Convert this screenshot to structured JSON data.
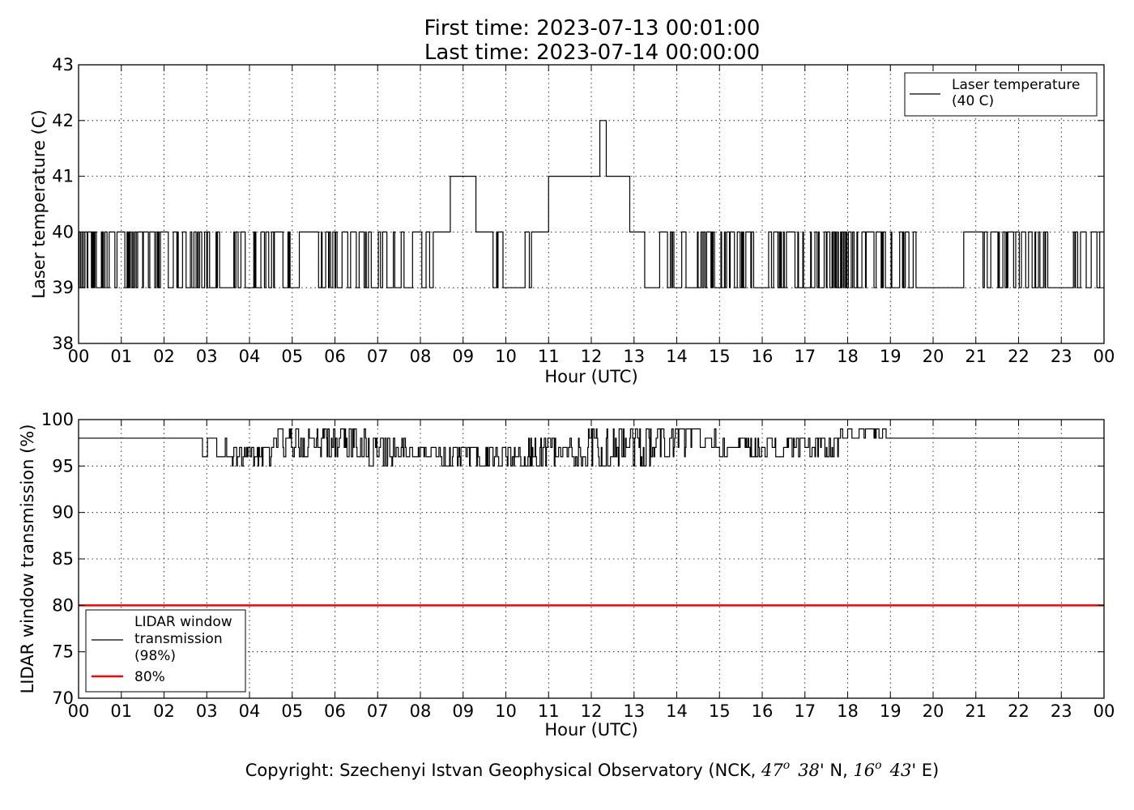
{
  "title": {
    "line1": "First time: 2023-07-13 00:01:00",
    "line2": "Last time: 2023-07-14 00:00:00"
  },
  "copyright": {
    "prefix": "Copyright: Szechenyi Istvan Geophysical Observatory (NCK, ",
    "lat_deg": "47",
    "lat_min": "38",
    "lat_suffix": "' N, ",
    "lon_deg": "16",
    "lon_min": "43",
    "lon_suffix": "' E)",
    "degree_mark": "o"
  },
  "colors": {
    "line": "#000000",
    "threshold": "#ff0000",
    "grid": "#000000"
  },
  "chart_data": [
    {
      "type": "line",
      "title": "",
      "xlabel": "Hour (UTC)",
      "ylabel": "Laser temperature (C)",
      "xlim": [
        0,
        24
      ],
      "ylim": [
        38,
        43
      ],
      "x_ticks": [
        0,
        1,
        2,
        3,
        4,
        5,
        6,
        7,
        8,
        9,
        10,
        11,
        12,
        13,
        14,
        15,
        16,
        17,
        18,
        19,
        20,
        21,
        22,
        23,
        24
      ],
      "x_tick_labels": [
        "00",
        "01",
        "02",
        "03",
        "04",
        "05",
        "06",
        "07",
        "08",
        "09",
        "10",
        "11",
        "12",
        "13",
        "14",
        "15",
        "16",
        "17",
        "18",
        "19",
        "20",
        "21",
        "22",
        "23",
        "00"
      ],
      "y_ticks": [
        38,
        39,
        40,
        41,
        42,
        43
      ],
      "y_tick_labels": [
        "38",
        "39",
        "40",
        "41",
        "42",
        "43"
      ],
      "grid": true,
      "legend_position": "top-right",
      "series": [
        {
          "name": "Laser temperature\n(40 C)",
          "color": "#000000",
          "segments": [
            {
              "start": 0.0,
              "end": 0.9,
              "mode": "toggle",
              "values": [
                39,
                40
              ],
              "rate": 0.7
            },
            {
              "start": 0.9,
              "end": 1.05,
              "mode": "flat",
              "value": 40
            },
            {
              "start": 1.05,
              "end": 2.1,
              "mode": "toggle",
              "values": [
                39,
                40
              ],
              "rate": 0.7
            },
            {
              "start": 2.1,
              "end": 2.2,
              "mode": "flat",
              "value": 39
            },
            {
              "start": 2.2,
              "end": 3.3,
              "mode": "toggle",
              "values": [
                39,
                40
              ],
              "rate": 0.6
            },
            {
              "start": 3.3,
              "end": 3.9,
              "mode": "toggle",
              "values": [
                39,
                40
              ],
              "rate": 0.25
            },
            {
              "start": 3.9,
              "end": 4.1,
              "mode": "flat",
              "value": 39
            },
            {
              "start": 4.1,
              "end": 4.95,
              "mode": "toggle",
              "values": [
                39,
                40
              ],
              "rate": 0.6
            },
            {
              "start": 4.95,
              "end": 5.7,
              "mode": "toggle",
              "values": [
                39,
                40
              ],
              "rate": 0.12
            },
            {
              "start": 5.7,
              "end": 6.9,
              "mode": "toggle",
              "values": [
                39,
                40
              ],
              "rate": 0.55
            },
            {
              "start": 6.9,
              "end": 7.4,
              "mode": "toggle",
              "values": [
                39,
                40
              ],
              "rate": 0.2
            },
            {
              "start": 7.4,
              "end": 8.3,
              "mode": "toggle",
              "values": [
                39,
                40
              ],
              "rate": 0.4
            },
            {
              "start": 8.3,
              "end": 8.7,
              "mode": "flat",
              "value": 40
            },
            {
              "start": 8.7,
              "end": 9.3,
              "mode": "flat",
              "value": 41
            },
            {
              "start": 9.3,
              "end": 9.7,
              "mode": "flat",
              "value": 40
            },
            {
              "start": 9.7,
              "end": 10.6,
              "mode": "toggle",
              "values": [
                39,
                40
              ],
              "rate": 0.5
            },
            {
              "start": 10.6,
              "end": 11.0,
              "mode": "flat",
              "value": 40
            },
            {
              "start": 11.0,
              "end": 12.2,
              "mode": "flat",
              "value": 41
            },
            {
              "start": 12.2,
              "end": 12.35,
              "mode": "flat",
              "value": 42
            },
            {
              "start": 12.35,
              "end": 12.9,
              "mode": "flat",
              "value": 41
            },
            {
              "start": 12.9,
              "end": 13.25,
              "mode": "flat",
              "value": 40
            },
            {
              "start": 13.25,
              "end": 13.6,
              "mode": "flat",
              "value": 39
            },
            {
              "start": 13.6,
              "end": 14.6,
              "mode": "toggle",
              "values": [
                39,
                40
              ],
              "rate": 0.25
            },
            {
              "start": 14.6,
              "end": 15.8,
              "mode": "toggle",
              "values": [
                39,
                40
              ],
              "rate": 0.55
            },
            {
              "start": 15.8,
              "end": 16.2,
              "mode": "toggle",
              "values": [
                39,
                40
              ],
              "rate": 0.15
            },
            {
              "start": 16.2,
              "end": 17.5,
              "mode": "toggle",
              "values": [
                39,
                40
              ],
              "rate": 0.55
            },
            {
              "start": 17.5,
              "end": 18.3,
              "mode": "toggle",
              "values": [
                39,
                40
              ],
              "rate": 0.7
            },
            {
              "start": 18.3,
              "end": 19.6,
              "mode": "toggle",
              "values": [
                39,
                40
              ],
              "rate": 0.4
            },
            {
              "start": 19.6,
              "end": 20.2,
              "mode": "flat",
              "value": 39
            },
            {
              "start": 20.2,
              "end": 21.2,
              "mode": "toggle",
              "values": [
                39,
                40
              ],
              "rate": 0.15
            },
            {
              "start": 21.2,
              "end": 21.6,
              "mode": "toggle",
              "values": [
                39,
                40
              ],
              "rate": 0.5
            },
            {
              "start": 21.6,
              "end": 22.7,
              "mode": "toggle",
              "values": [
                39,
                40
              ],
              "rate": 0.55
            },
            {
              "start": 22.7,
              "end": 23.2,
              "mode": "flat",
              "value": 39
            },
            {
              "start": 23.2,
              "end": 24.0,
              "mode": "toggle",
              "values": [
                39,
                40
              ],
              "rate": 0.45
            }
          ]
        }
      ]
    },
    {
      "type": "line",
      "title": "",
      "xlabel": "Hour (UTC)",
      "ylabel": "LIDAR window transmission (%)",
      "xlim": [
        0,
        24
      ],
      "ylim": [
        70,
        100
      ],
      "x_ticks": [
        0,
        1,
        2,
        3,
        4,
        5,
        6,
        7,
        8,
        9,
        10,
        11,
        12,
        13,
        14,
        15,
        16,
        17,
        18,
        19,
        20,
        21,
        22,
        23,
        24
      ],
      "x_tick_labels": [
        "00",
        "01",
        "02",
        "03",
        "04",
        "05",
        "06",
        "07",
        "08",
        "09",
        "10",
        "11",
        "12",
        "13",
        "14",
        "15",
        "16",
        "17",
        "18",
        "19",
        "20",
        "21",
        "22",
        "23",
        "00"
      ],
      "y_ticks": [
        70,
        75,
        80,
        85,
        90,
        95,
        100
      ],
      "y_tick_labels": [
        "70",
        "75",
        "80",
        "85",
        "90",
        "95",
        "100"
      ],
      "grid": true,
      "legend_position": "bottom-left",
      "series": [
        {
          "name": "LIDAR window\ntransmission\n(98%)",
          "color": "#000000",
          "segments": [
            {
              "start": 0.0,
              "end": 2.9,
              "mode": "flat",
              "value": 98
            },
            {
              "start": 2.9,
              "end": 3.6,
              "mode": "toggle",
              "values": [
                96,
                97,
                98
              ],
              "rate": 0.3
            },
            {
              "start": 3.6,
              "end": 4.5,
              "mode": "toggle",
              "values": [
                95,
                96,
                97
              ],
              "rate": 0.6
            },
            {
              "start": 4.5,
              "end": 6.8,
              "mode": "toggle",
              "values": [
                96,
                97,
                98,
                99
              ],
              "rate": 0.6
            },
            {
              "start": 6.8,
              "end": 7.7,
              "mode": "toggle",
              "values": [
                95,
                96,
                97,
                98
              ],
              "rate": 0.6
            },
            {
              "start": 7.7,
              "end": 8.5,
              "mode": "toggle",
              "values": [
                96,
                97
              ],
              "rate": 0.5
            },
            {
              "start": 8.5,
              "end": 9.7,
              "mode": "toggle",
              "values": [
                95,
                96,
                97
              ],
              "rate": 0.5
            },
            {
              "start": 9.7,
              "end": 10.4,
              "mode": "toggle",
              "values": [
                95,
                96,
                97
              ],
              "rate": 0.5
            },
            {
              "start": 10.4,
              "end": 11.9,
              "mode": "toggle",
              "values": [
                95,
                96,
                97,
                98
              ],
              "rate": 0.65
            },
            {
              "start": 11.9,
              "end": 13.4,
              "mode": "toggle",
              "values": [
                95,
                96,
                97,
                98,
                99
              ],
              "rate": 0.7
            },
            {
              "start": 13.4,
              "end": 14.2,
              "mode": "toggle",
              "values": [
                96,
                97,
                98,
                99
              ],
              "rate": 0.6
            },
            {
              "start": 14.2,
              "end": 15.0,
              "mode": "toggle",
              "values": [
                97,
                98,
                99
              ],
              "rate": 0.3
            },
            {
              "start": 15.0,
              "end": 17.8,
              "mode": "toggle",
              "values": [
                96,
                97,
                98
              ],
              "rate": 0.5
            },
            {
              "start": 17.8,
              "end": 18.9,
              "mode": "toggle",
              "values": [
                98,
                99
              ],
              "rate": 0.25
            },
            {
              "start": 18.9,
              "end": 24.0,
              "mode": "flat",
              "value": 98
            }
          ]
        },
        {
          "name": "80%",
          "color": "#ff0000",
          "segments": [
            {
              "start": 0.0,
              "end": 24.0,
              "mode": "flat",
              "value": 80
            }
          ]
        }
      ]
    }
  ]
}
